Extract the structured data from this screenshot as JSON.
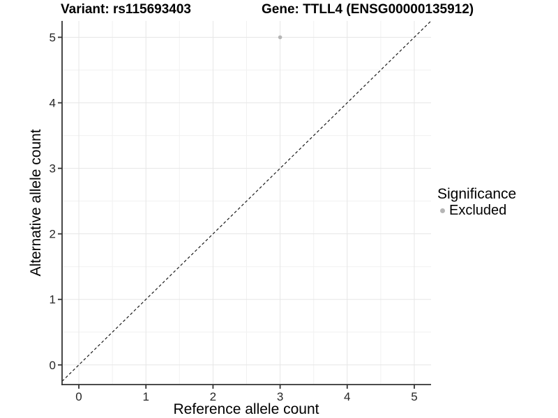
{
  "chart_data": {
    "type": "scatter",
    "titles": {
      "left": "Variant: rs115693403",
      "right": "Gene: TTLL4 (ENSG00000135912)"
    },
    "xlabel": "Reference allele count",
    "ylabel": "Alternative allele count",
    "xlim": [
      -0.25,
      5.25
    ],
    "ylim": [
      -0.3,
      5.25
    ],
    "x_ticks": [
      0,
      1,
      2,
      3,
      4,
      5
    ],
    "y_ticks": [
      0,
      1,
      2,
      3,
      4,
      5
    ],
    "minor_grid_step": 0.5,
    "grid": "major+minor",
    "points": [
      {
        "x": 3,
        "y": 5,
        "significance": "Excluded"
      }
    ],
    "identity_line": {
      "slope": 1,
      "intercept": 0,
      "style": "dashed"
    },
    "legend": {
      "title": "Significance",
      "position": "right",
      "entries": [
        {
          "label": "Excluded",
          "color": "#b5b5b5"
        }
      ]
    },
    "style": {
      "point_color": "#b5b5b5",
      "point_radius": 2.8,
      "major_grid_color": "#e6e6e6",
      "minor_grid_color": "#f1f1f1",
      "axis_line_color": "#333333",
      "tick_color": "#333333",
      "tick_label_color": "#262626",
      "identity_line_color": "#1a1a1a"
    }
  }
}
